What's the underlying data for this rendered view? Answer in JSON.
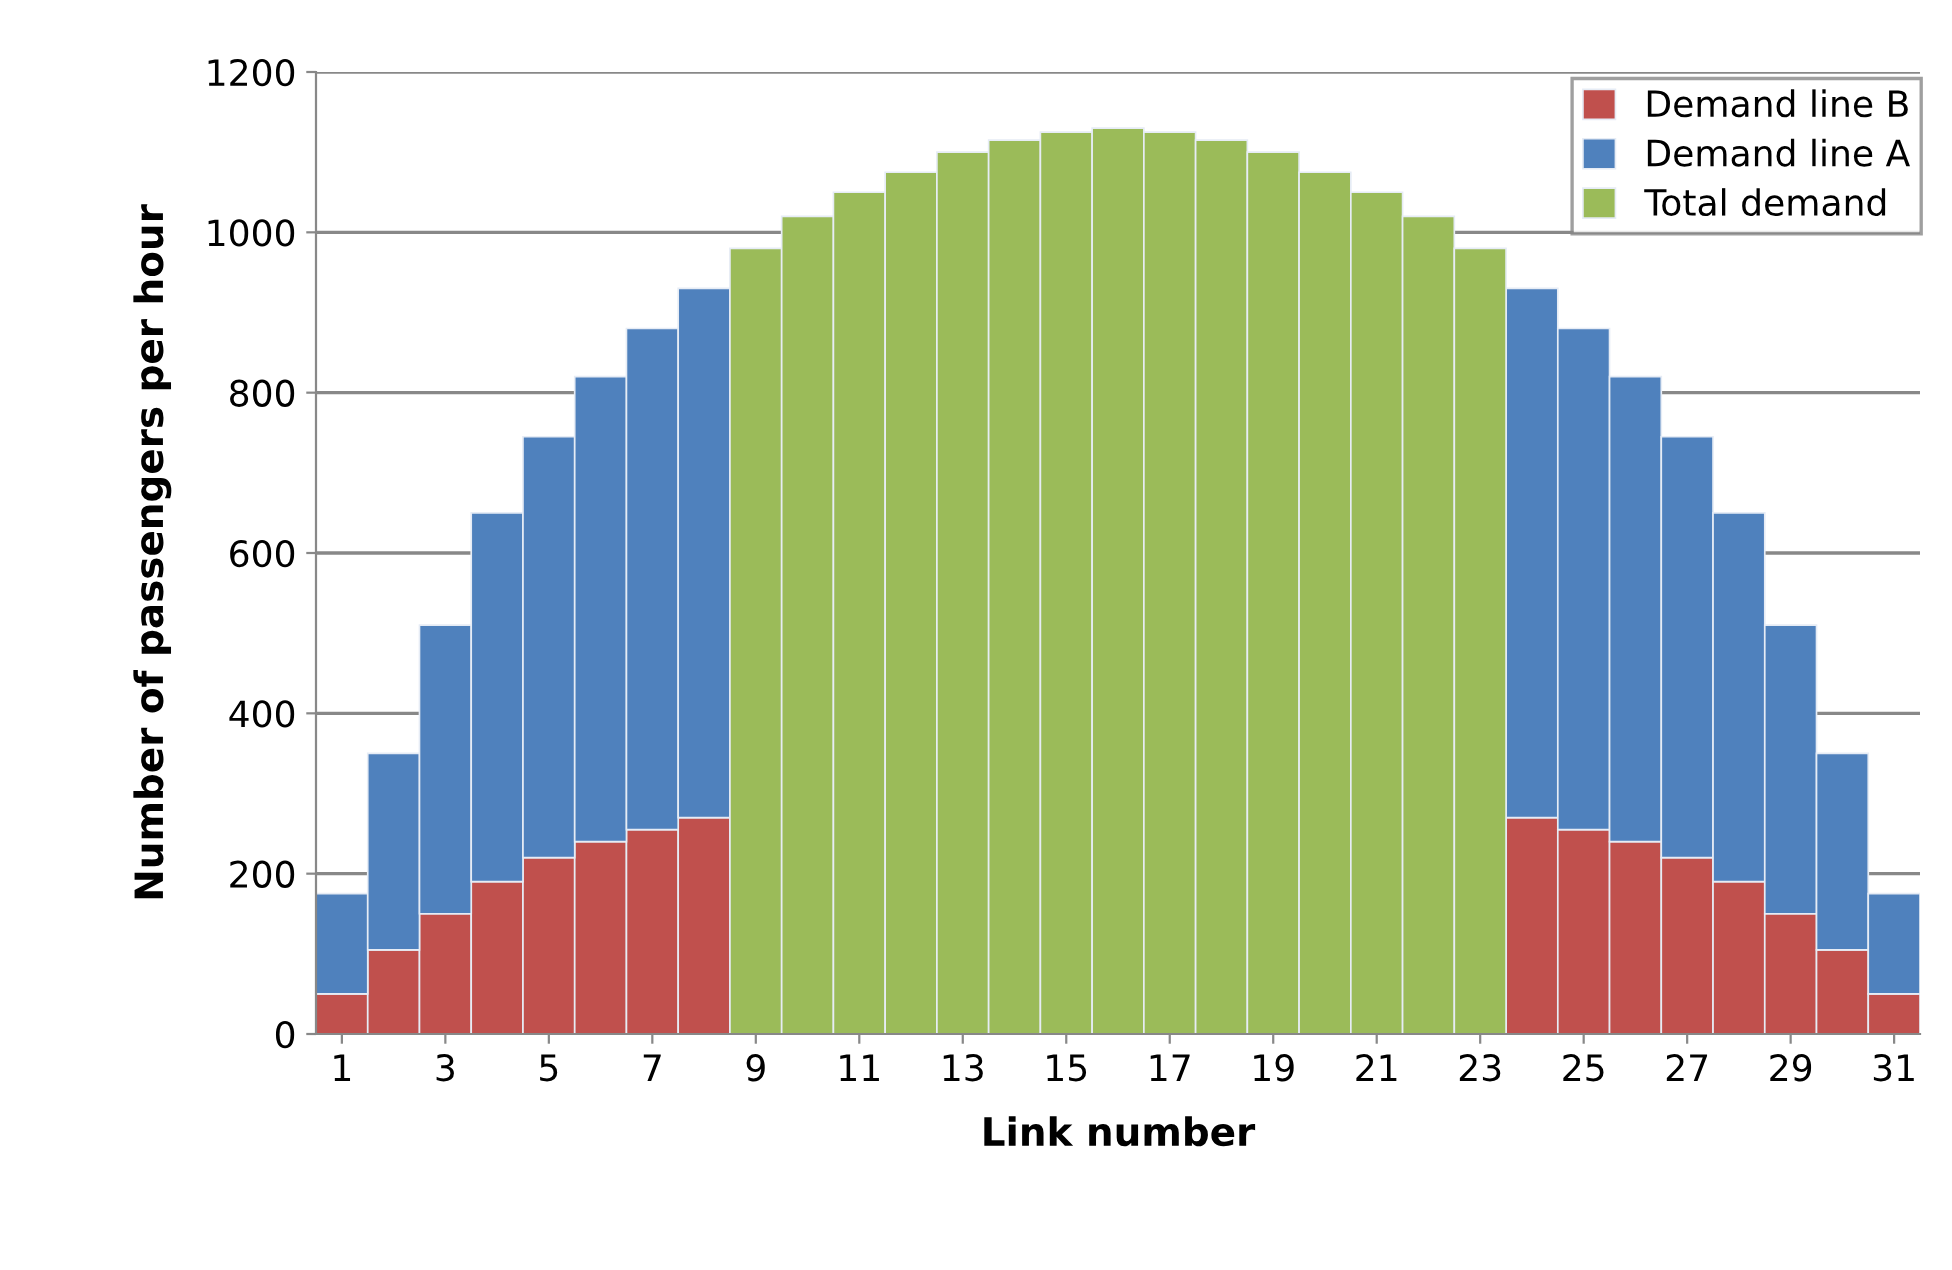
{
  "chart_data": {
    "type": "bar",
    "stacked": true,
    "xlabel": "Link number",
    "ylabel": "Number of passengers per hour",
    "categories": [
      "1",
      null,
      "3",
      null,
      "5",
      null,
      "7",
      null,
      "9",
      null,
      "11",
      null,
      "13",
      null,
      "15",
      null,
      "17",
      null,
      "19",
      null,
      "21",
      null,
      "23",
      null,
      "25",
      null,
      "27",
      null,
      "29",
      null,
      "31"
    ],
    "series": [
      {
        "name": "Demand line B",
        "color": "#c0504d",
        "values": [
          50,
          105,
          150,
          190,
          220,
          240,
          255,
          270,
          null,
          null,
          null,
          null,
          null,
          null,
          null,
          null,
          null,
          null,
          null,
          null,
          null,
          null,
          null,
          270,
          255,
          240,
          220,
          190,
          150,
          105,
          50
        ]
      },
      {
        "name": "Demand line A",
        "color": "#4f81bd",
        "values": [
          125,
          245,
          360,
          460,
          525,
          580,
          625,
          660,
          null,
          null,
          null,
          null,
          null,
          null,
          null,
          null,
          null,
          null,
          null,
          null,
          null,
          null,
          null,
          660,
          625,
          580,
          525,
          460,
          360,
          245,
          125
        ]
      },
      {
        "name": "Total demand",
        "color": "#9bbb59",
        "values": [
          null,
          null,
          null,
          null,
          null,
          null,
          null,
          null,
          980,
          1020,
          1050,
          1075,
          1100,
          1115,
          1125,
          1130,
          1125,
          1115,
          1100,
          1075,
          1050,
          1020,
          980,
          null,
          null,
          null,
          null,
          null,
          null,
          null,
          null
        ]
      }
    ],
    "ylim": [
      0,
      1200
    ],
    "yticks": [
      0,
      200,
      400,
      600,
      800,
      1000,
      1200
    ],
    "grid": "y",
    "legend": "top right"
  }
}
